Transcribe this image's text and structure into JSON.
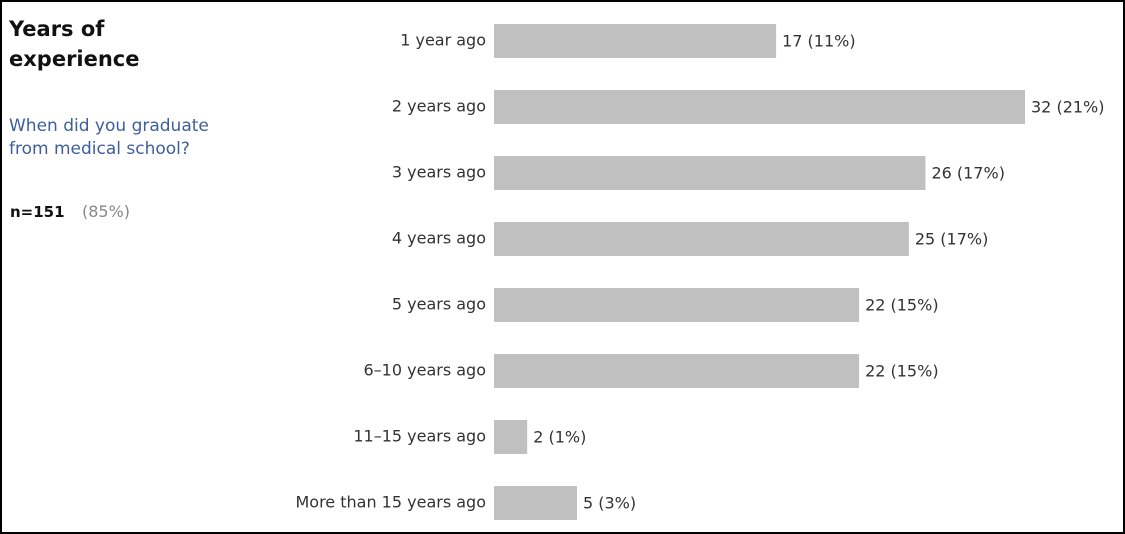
{
  "chart_data": {
    "type": "hbar",
    "title": "Years of experience",
    "subtitle": "When did you graduate from medical school?",
    "n": "n=151",
    "response_rate": "(85%)",
    "categories": [
      "1 year ago",
      "2 years ago",
      "3 years ago",
      "4 years ago",
      "5 years ago",
      "6–10 years ago",
      "11–15 years ago",
      "More than 15 years ago"
    ],
    "values": [
      17,
      32,
      26,
      25,
      22,
      22,
      2,
      5
    ],
    "value_labels": [
      "17 (11%)",
      "32 (21%)",
      "26 (17%)",
      "25 (17%)",
      "22 (15%)",
      "22 (15%)",
      "2 (1%)",
      "5 (3%)"
    ],
    "color": "#c0c0c0"
  }
}
